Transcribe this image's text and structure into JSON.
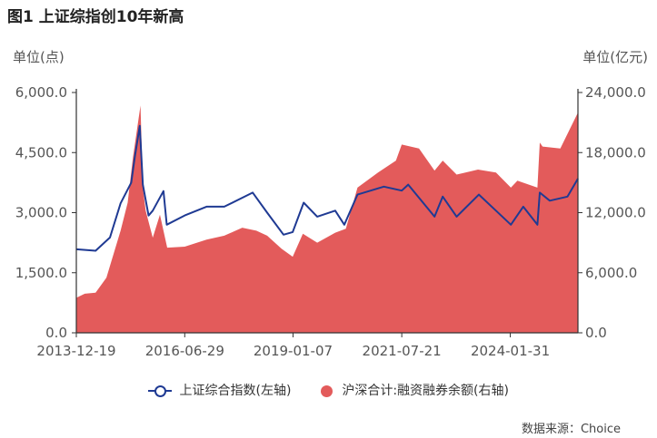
{
  "title": "图1    上证综指创10年新高",
  "unit_left": "单位(点)",
  "unit_right": "单位(亿元)",
  "source": "数据来源：Choice",
  "colors": {
    "line": "#1f3a93",
    "area": "#e35b5b"
  },
  "chart_data": {
    "type": "line+area",
    "x_tick_labels": [
      "2013-12-19",
      "2016-06-29",
      "2019-01-07",
      "2021-07-21",
      "2024-01-31"
    ],
    "y_left": {
      "ticks": [
        "0.0",
        "1,500.0",
        "3,000.0",
        "4,500.0",
        "6,000.0"
      ],
      "ylim": [
        0,
        6000
      ]
    },
    "y_right": {
      "ticks": [
        "0.0",
        "6,000.0",
        "12,000.0",
        "18,000.0",
        "24,000.0"
      ],
      "ylim": [
        0,
        24000
      ]
    },
    "series": [
      {
        "name": "上证综合指数(左轴)",
        "type": "line",
        "axis": "left",
        "x": [
          "2013-12-19",
          "2014-06-01",
          "2014-10-01",
          "2014-12-31",
          "2015-03-31",
          "2015-05-01",
          "2015-06-12",
          "2015-07-08",
          "2015-08-26",
          "2015-10-01",
          "2015-12-31",
          "2016-01-28",
          "2016-06-29",
          "2017-01-01",
          "2017-06-01",
          "2018-01-29",
          "2018-06-01",
          "2018-10-18",
          "2019-01-04",
          "2019-04-08",
          "2019-08-01",
          "2020-01-01",
          "2020-03-19",
          "2020-07-09",
          "2021-02-18",
          "2021-07-21",
          "2021-09-14",
          "2022-04-26",
          "2022-07-05",
          "2022-10-31",
          "2023-05-09",
          "2023-10-01",
          "2024-02-05",
          "2024-05-20",
          "2024-09-18",
          "2024-10-08",
          "2025-01-01",
          "2025-06-01",
          "2025-08-29"
        ],
        "values": [
          2085,
          2050,
          2380,
          3234,
          3750,
          4400,
          5166,
          3700,
          2927,
          3050,
          3539,
          2700,
          2930,
          3150,
          3150,
          3500,
          3000,
          2450,
          2515,
          3250,
          2900,
          3050,
          2700,
          3450,
          3650,
          3550,
          3700,
          2900,
          3400,
          2900,
          3450,
          3050,
          2700,
          3150,
          2700,
          3500,
          3300,
          3400,
          3850
        ]
      },
      {
        "name": "沪深合计:融资融券余额(右轴)",
        "type": "area",
        "axis": "right",
        "x": [
          "2013-12-19",
          "2014-03-01",
          "2014-06-01",
          "2014-09-01",
          "2014-12-31",
          "2015-03-01",
          "2015-04-15",
          "2015-06-18",
          "2015-07-08",
          "2015-08-01",
          "2015-10-01",
          "2015-12-01",
          "2016-02-01",
          "2016-06-29",
          "2017-01-01",
          "2017-06-01",
          "2017-11-01",
          "2018-03-01",
          "2018-06-01",
          "2018-10-01",
          "2019-01-04",
          "2019-04-01",
          "2019-08-01",
          "2020-01-01",
          "2020-04-01",
          "2020-07-09",
          "2020-12-31",
          "2021-06-01",
          "2021-07-21",
          "2021-12-15",
          "2022-04-26",
          "2022-07-05",
          "2022-10-31",
          "2023-05-01",
          "2023-10-01",
          "2024-02-05",
          "2024-04-01",
          "2024-09-18",
          "2024-10-08",
          "2024-11-01",
          "2025-04-01",
          "2025-08-29"
        ],
        "values": [
          3500,
          3900,
          4000,
          5500,
          10200,
          13000,
          17500,
          22700,
          14500,
          12200,
          9500,
          11800,
          8500,
          8600,
          9300,
          9700,
          10500,
          10200,
          9700,
          8400,
          7600,
          9900,
          9000,
          10000,
          10400,
          14500,
          16000,
          17200,
          18800,
          18400,
          16200,
          17200,
          15800,
          16300,
          16000,
          14500,
          15200,
          14500,
          19000,
          18600,
          18400,
          22000
        ]
      }
    ]
  }
}
